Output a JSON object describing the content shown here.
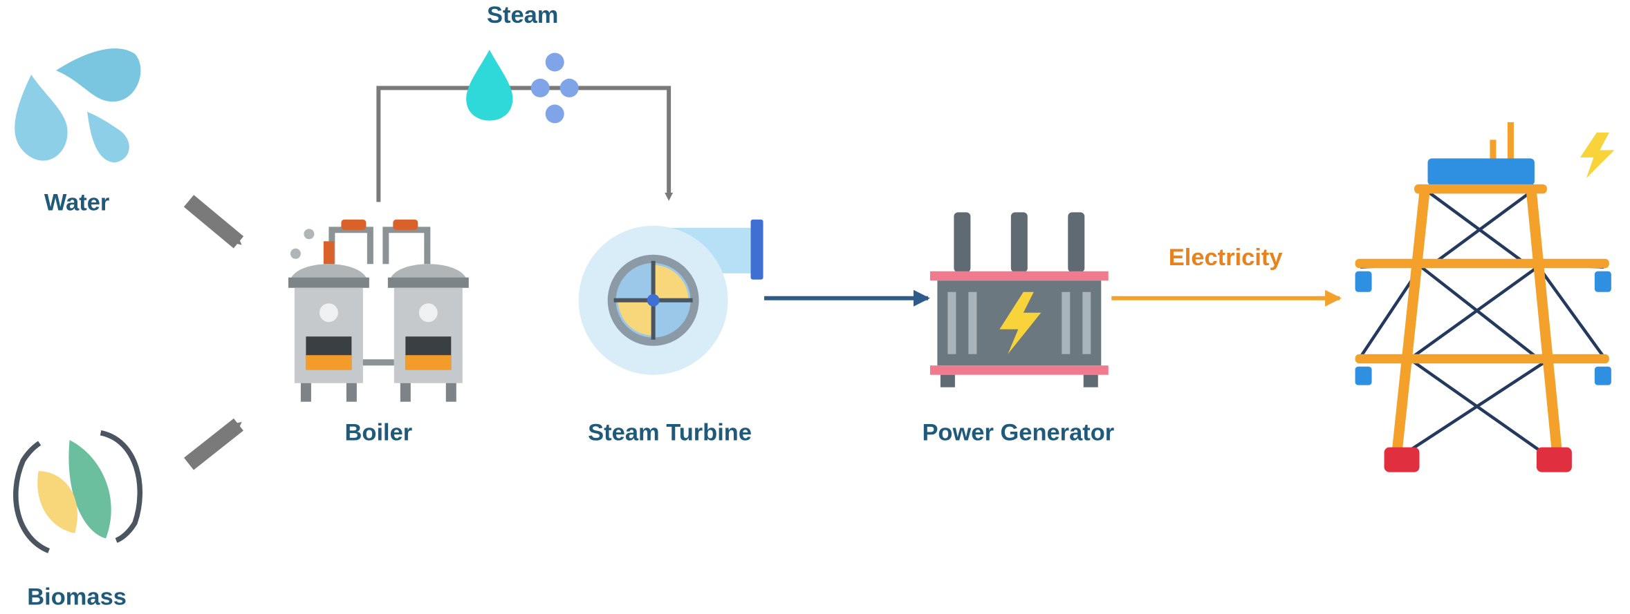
{
  "nodes": [
    {
      "label": "Water"
    },
    {
      "label": "Biomass"
    },
    {
      "label": "Boiler"
    },
    {
      "label": "Steam Turbine"
    },
    {
      "label": "Power Generator"
    }
  ],
  "edges": [
    {
      "label": "Steam"
    },
    {
      "label": "Electricity"
    }
  ]
}
